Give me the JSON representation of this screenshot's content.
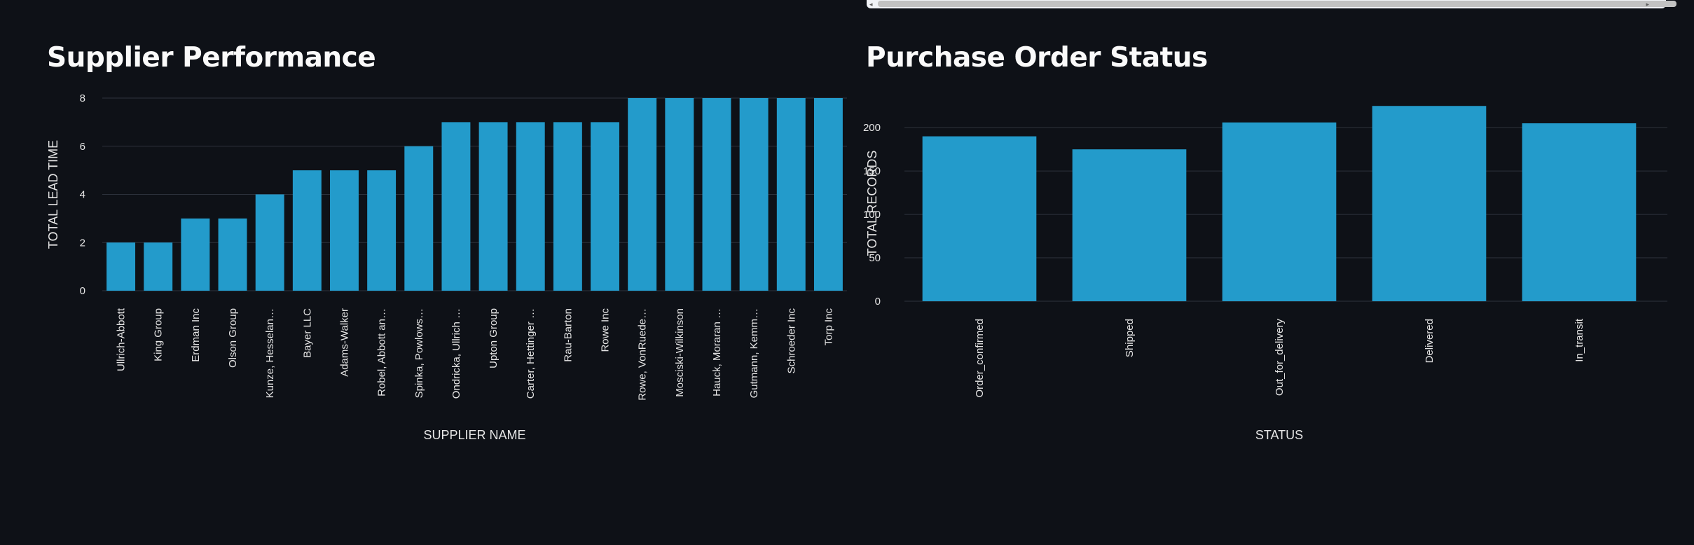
{
  "colors": {
    "background": "#0e1117",
    "bar": "#239bcb",
    "grid": "#2d323c",
    "text": "#e6e6e6"
  },
  "chart_data": [
    {
      "type": "bar",
      "title": "Supplier Performance",
      "xlabel": "SUPPLIER NAME",
      "ylabel": "TOTAL LEAD TIME",
      "ylim": [
        0,
        8
      ],
      "yticks": [
        0,
        2,
        4,
        6,
        8
      ],
      "grid": true,
      "categories": [
        "Ullrich-Abbott",
        "King Group",
        "Erdman Inc",
        "Olson Group",
        "Kunze, Hesselan…",
        "Bayer LLC",
        "Adams-Walker",
        "Robel, Abbott an…",
        "Spinka, Powlows…",
        "Ondricka, Ullrich …",
        "Upton Group",
        "Carter, Hettinger …",
        "Rau-Barton",
        "Rowe Inc",
        "Rowe, VonRuede…",
        "Mosciski-Wilkinson",
        "Hauck, Moraran …",
        "Gutmann, Kemm…",
        "Schroeder Inc",
        "Torp Inc"
      ],
      "values": [
        2,
        2,
        3,
        3,
        4,
        5,
        5,
        5,
        6,
        7,
        7,
        7,
        7,
        7,
        8,
        8,
        8,
        8,
        8,
        8
      ]
    },
    {
      "type": "bar",
      "title": "Purchase Order Status",
      "xlabel": "STATUS",
      "ylabel": "TOTAL RECORDS",
      "ylim": [
        0,
        226
      ],
      "yticks": [
        0,
        50,
        100,
        150,
        200
      ],
      "grid": true,
      "categories": [
        "Order_confirmed",
        "Shipped",
        "Out_for_delivery",
        "Delivered",
        "In_transit"
      ],
      "values": [
        190,
        175,
        206,
        225,
        205
      ]
    }
  ]
}
